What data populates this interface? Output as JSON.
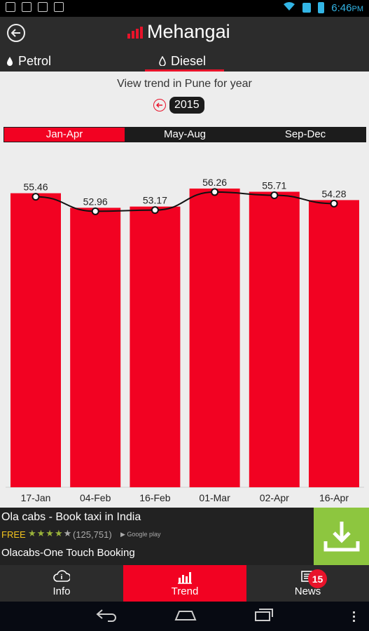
{
  "status_bar": {
    "time": "6:46",
    "time_suffix": "PM"
  },
  "header": {
    "app_title": "Mehangai",
    "tabs": [
      {
        "label": "Petrol"
      },
      {
        "label": "Diesel"
      }
    ]
  },
  "trend": {
    "label": "View trend in Pune for year",
    "year": "2015",
    "segments": [
      {
        "label": "Jan-Apr"
      },
      {
        "label": "May-Aug"
      },
      {
        "label": "Sep-Dec"
      }
    ],
    "active_segment": "Jan-Apr"
  },
  "chart_data": {
    "type": "bar",
    "categories": [
      "17-Jan",
      "04-Feb",
      "16-Feb",
      "01-Mar",
      "02-Apr",
      "16-Apr"
    ],
    "values": [
      55.46,
      52.96,
      53.17,
      56.26,
      55.71,
      54.28
    ],
    "labels": [
      "55.46",
      "52.96",
      "53.17",
      "56.26",
      "55.71",
      "54.28"
    ],
    "overlay": "line",
    "bar_color": "#f20222",
    "line_color": "#111111"
  },
  "ad": {
    "title": "Ola cabs - Book taxi in India",
    "price": "FREE",
    "rating": 4,
    "rating_count": "(125,751)",
    "store": "Google play",
    "subtitle": "Olacabs-One Touch Booking",
    "download_icon": "download-icon"
  },
  "bottom_tabs": [
    {
      "label": "Info",
      "icon": "cloud-info-icon"
    },
    {
      "label": "Trend",
      "icon": "bar-chart-icon"
    },
    {
      "label": "News",
      "icon": "newspaper-icon",
      "badge": "15"
    }
  ],
  "colors": {
    "accent": "#f20222",
    "header": "#2c2c2c",
    "ad_button": "#8dc63f"
  }
}
